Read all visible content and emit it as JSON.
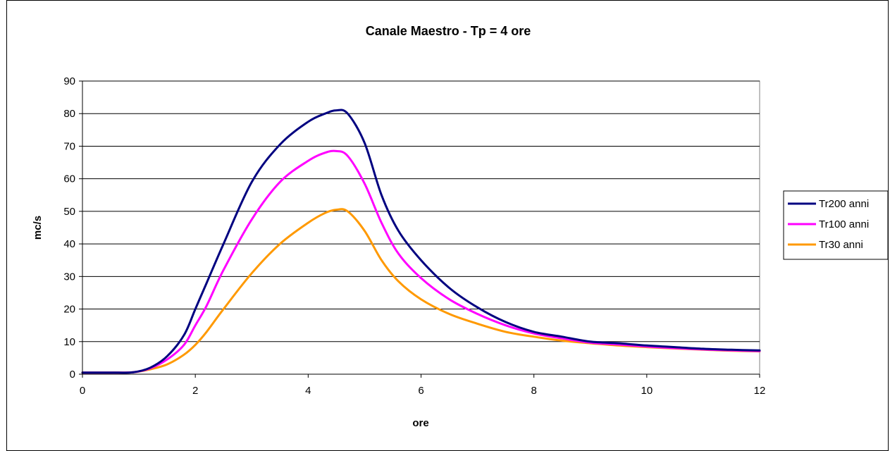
{
  "chart_data": {
    "type": "line",
    "title": "Canale Maestro - Tp = 4 ore",
    "xlabel": "ore",
    "ylabel": "mc/s",
    "xlim": [
      0,
      12
    ],
    "ylim": [
      0,
      90
    ],
    "xticks": [
      0,
      2,
      4,
      6,
      8,
      10,
      12
    ],
    "yticks": [
      0,
      10,
      20,
      30,
      40,
      50,
      60,
      70,
      80,
      90
    ],
    "grid": "horizontal",
    "legend_position": "right",
    "x": [
      0,
      0.5,
      0.9,
      1.2,
      1.5,
      1.8,
      2.0,
      2.2,
      2.5,
      3.0,
      3.5,
      4.0,
      4.3,
      4.5,
      4.7,
      5.0,
      5.3,
      5.6,
      6.0,
      6.5,
      7.0,
      7.5,
      8.0,
      8.5,
      9.0,
      9.5,
      10.0,
      10.5,
      11.0,
      11.5,
      12.0
    ],
    "series": [
      {
        "name": "Tr200 anni",
        "color": "#000080",
        "values": [
          0.5,
          0.5,
          0.6,
          2,
          5.5,
          12,
          20,
          28,
          40,
          59,
          70.5,
          77.5,
          80,
          81,
          80,
          71,
          55,
          44,
          35,
          26.5,
          20.5,
          16,
          13,
          11.5,
          10,
          9.5,
          8.8,
          8.3,
          7.8,
          7.5,
          7.3
        ]
      },
      {
        "name": "Tr100 anni",
        "color": "#FF00FF",
        "values": [
          0.5,
          0.5,
          0.6,
          1.8,
          4.5,
          9,
          15,
          21,
          32,
          47.5,
          59,
          65.5,
          68,
          68.5,
          67,
          58.5,
          46.5,
          37,
          29.5,
          23,
          18.5,
          15,
          12.5,
          11,
          9.7,
          9.1,
          8.5,
          8.0,
          7.6,
          7.3,
          7.1
        ]
      },
      {
        "name": "Tr30 anni",
        "color": "#FF9900",
        "values": [
          0.5,
          0.5,
          0.6,
          1.5,
          3,
          6,
          9,
          13,
          20,
          31,
          40,
          46.5,
          49.5,
          50.5,
          50,
          44,
          35,
          28.5,
          23,
          18.5,
          15.5,
          13,
          11.5,
          10.3,
          9.5,
          8.8,
          8.3,
          7.9,
          7.5,
          7.2,
          7.0
        ]
      }
    ]
  }
}
